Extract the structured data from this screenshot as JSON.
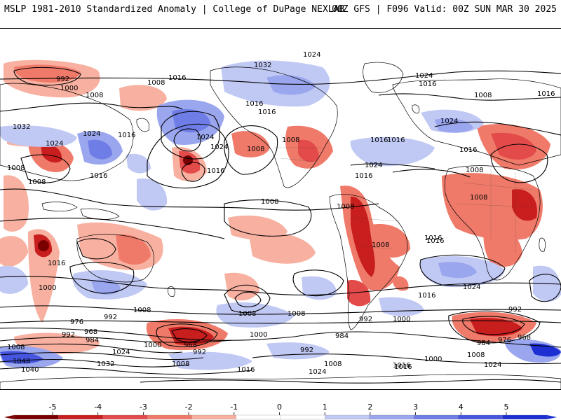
{
  "header": {
    "title_left": "MSLP 1981-2010 Standardized Anomaly | College of DuPage NEXLAB",
    "title_right": "00Z GFS | F096 Valid: 00Z SUN MAR 30 2025"
  },
  "colors": {
    "neg5": "#7a0000",
    "neg4": "#c81e1e",
    "neg3": "#e34a4a",
    "neg2": "#f07a6a",
    "neg1": "#f8b0a0",
    "zero": "#ffffff",
    "pos1": "#c0c8f4",
    "pos2": "#9aa6ee",
    "pos3": "#6f7ee6",
    "pos4": "#4656de",
    "pos5": "#1d2fd2",
    "coast": "#000000",
    "isobar": "#000000"
  },
  "colorbar": {
    "ticks": [
      "-5",
      "-4",
      "-3",
      "-2",
      "-1",
      "0",
      "1",
      "2",
      "3",
      "4",
      "5"
    ]
  },
  "isobar_labels": [
    {
      "text": "1024"
    },
    {
      "text": "992"
    },
    {
      "text": "1000"
    },
    {
      "text": "1008"
    },
    {
      "text": "1016"
    },
    {
      "text": "1032"
    },
    {
      "text": "1024"
    },
    {
      "text": "1016"
    },
    {
      "text": "1016"
    },
    {
      "text": "1008"
    },
    {
      "text": "1032"
    },
    {
      "text": "1024"
    },
    {
      "text": "1016"
    },
    {
      "text": "1008"
    },
    {
      "text": "1008"
    },
    {
      "text": "1016"
    },
    {
      "text": "1024"
    },
    {
      "text": "1008"
    },
    {
      "text": "1016"
    },
    {
      "text": "1008"
    },
    {
      "text": "1024"
    },
    {
      "text": "1016"
    },
    {
      "text": "1024"
    },
    {
      "text": "1016"
    },
    {
      "text": "1008"
    },
    {
      "text": "1016"
    },
    {
      "text": "1008"
    },
    {
      "text": "1024"
    },
    {
      "text": "1016"
    },
    {
      "text": "1000"
    },
    {
      "text": "1008"
    },
    {
      "text": "1016"
    },
    {
      "text": "1008"
    },
    {
      "text": "976"
    },
    {
      "text": "968"
    },
    {
      "text": "984"
    },
    {
      "text": "992"
    },
    {
      "text": "992"
    },
    {
      "text": "1008"
    },
    {
      "text": "1024"
    },
    {
      "text": "1000"
    },
    {
      "text": "968"
    },
    {
      "text": "992"
    },
    {
      "text": "1032"
    },
    {
      "text": "1048"
    },
    {
      "text": "1040"
    },
    {
      "text": "1008"
    },
    {
      "text": "1016"
    },
    {
      "text": "1024"
    },
    {
      "text": "1008"
    },
    {
      "text": "1000"
    },
    {
      "text": "992"
    },
    {
      "text": "1008"
    },
    {
      "text": "1016"
    },
    {
      "text": "1016"
    },
    {
      "text": "984"
    },
    {
      "text": "992"
    },
    {
      "text": "1000"
    },
    {
      "text": "1016"
    },
    {
      "text": "1024"
    },
    {
      "text": "992"
    },
    {
      "text": "984"
    },
    {
      "text": "976"
    },
    {
      "text": "968"
    },
    {
      "text": "1008"
    },
    {
      "text": "1024"
    },
    {
      "text": "1000"
    },
    {
      "text": "1008"
    },
    {
      "text": "1016"
    },
    {
      "text": "1008"
    },
    {
      "text": "1016"
    },
    {
      "text": "1016"
    },
    {
      "text": "1008"
    },
    {
      "text": "1024"
    },
    {
      "text": "1016"
    },
    {
      "text": "1008"
    }
  ]
}
